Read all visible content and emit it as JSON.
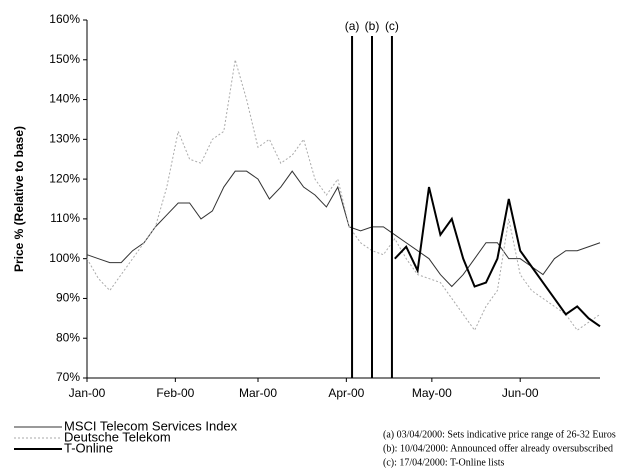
{
  "chart_data": {
    "type": "line",
    "y_label": "Price % (Relative to base)",
    "x": [
      0,
      4,
      8,
      12,
      16,
      20,
      24,
      28,
      32,
      36,
      40,
      44,
      48,
      52,
      56,
      60,
      64,
      68,
      72,
      76,
      80,
      84,
      88,
      92,
      96,
      100,
      104,
      108,
      112,
      116,
      120,
      124,
      128,
      132,
      136,
      140,
      144,
      148,
      152,
      156,
      160,
      164,
      168,
      172,
      176,
      180
    ],
    "xlim": [
      0,
      180
    ],
    "xticks": [
      {
        "value": 0,
        "label": "Jan-00"
      },
      {
        "value": 31,
        "label": "Feb-00"
      },
      {
        "value": 60,
        "label": "Mar-00"
      },
      {
        "value": 91,
        "label": "Apr-00"
      },
      {
        "value": 121,
        "label": "May-00"
      },
      {
        "value": 152,
        "label": "Jun-00"
      }
    ],
    "ylim": [
      70,
      160
    ],
    "yticks": [
      {
        "value": 70,
        "label": "70%"
      },
      {
        "value": 80,
        "label": "80%"
      },
      {
        "value": 90,
        "label": "90%"
      },
      {
        "value": 100,
        "label": "100%"
      },
      {
        "value": 110,
        "label": "110%"
      },
      {
        "value": 120,
        "label": "120%"
      },
      {
        "value": 130,
        "label": "130%"
      },
      {
        "value": 140,
        "label": "140%"
      },
      {
        "value": 150,
        "label": "150%"
      },
      {
        "value": 160,
        "label": "160%"
      }
    ],
    "series": [
      {
        "name": "MSCI Telecom Services Index",
        "color": "#333333",
        "width": 1,
        "dash": "",
        "values": [
          101,
          100,
          99,
          99,
          102,
          104,
          108,
          111,
          114,
          114,
          110,
          112,
          118,
          122,
          122,
          120,
          115,
          118,
          122,
          118,
          116,
          113,
          118,
          108,
          107,
          108,
          108,
          106,
          104,
          102,
          100,
          96,
          93,
          96,
          100,
          104,
          104,
          100,
          100,
          98,
          96,
          100,
          102,
          102,
          103,
          104
        ]
      },
      {
        "name": "Deutsche Telekom",
        "color": "#aaaaaa",
        "width": 1,
        "dash": "2 2",
        "values": [
          100,
          95,
          92,
          96,
          100,
          104,
          108,
          118,
          132,
          125,
          124,
          130,
          132,
          150,
          140,
          128,
          130,
          124,
          126,
          130,
          120,
          116,
          120,
          108,
          104,
          102,
          101,
          105,
          100,
          96,
          95,
          94,
          90,
          86,
          82,
          88,
          92,
          110,
          96,
          92,
          90,
          88,
          86,
          82,
          84,
          86
        ]
      },
      {
        "name": "T-Online",
        "color": "#000000",
        "width": 2,
        "dash": "",
        "values": [
          null,
          null,
          null,
          null,
          null,
          null,
          null,
          null,
          null,
          null,
          null,
          null,
          null,
          null,
          null,
          null,
          null,
          null,
          null,
          null,
          null,
          null,
          null,
          null,
          null,
          null,
          null,
          100,
          103,
          97,
          118,
          106,
          110,
          100,
          93,
          94,
          100,
          115,
          102,
          98,
          94,
          90,
          86,
          88,
          85,
          83
        ]
      }
    ],
    "events": [
      {
        "label": "(a)",
        "x": 93,
        "note": "(a) 03/04/2000: Sets indicative price range of 26-32 Euros"
      },
      {
        "label": "(b)",
        "x": 100,
        "note": "(b): 10/04/2000: Announced offer already oversubscribed"
      },
      {
        "label": "(c)",
        "x": 107,
        "note": "(c): 17/04/2000: T-Online lists"
      }
    ]
  }
}
